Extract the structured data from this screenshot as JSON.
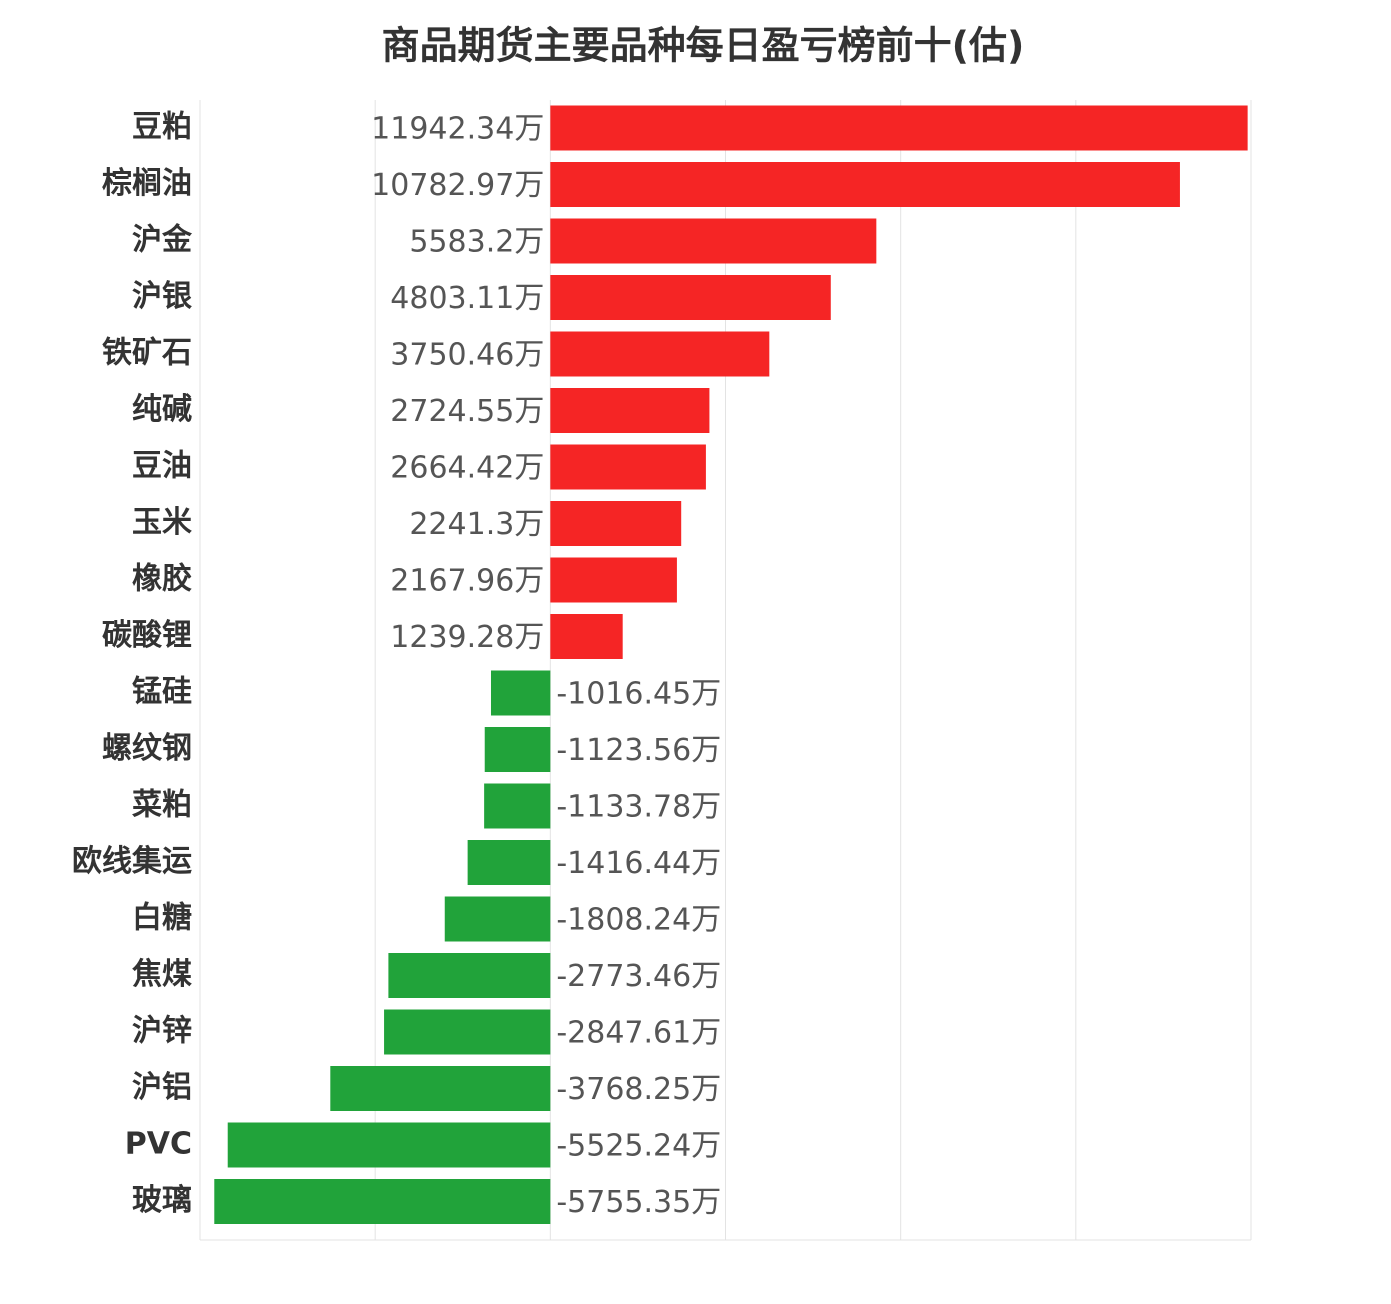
{
  "chart_data": {
    "type": "bar",
    "orientation": "horizontal",
    "title": "商品期货主要品种每日盈亏榜前十(估)",
    "categories": [
      "豆粕",
      "棕榈油",
      "沪金",
      "沪银",
      "铁矿石",
      "纯碱",
      "豆油",
      "玉米",
      "橡胶",
      "碳酸锂",
      "锰硅",
      "螺纹钢",
      "菜粕",
      "欧线集运",
      "白糖",
      "焦煤",
      "沪锌",
      "沪铝",
      "PVC",
      "玻璃"
    ],
    "values": [
      11942.34,
      10782.97,
      5583.2,
      4803.11,
      3750.46,
      2724.55,
      2664.42,
      2241.3,
      2167.96,
      1239.28,
      -1016.45,
      -1123.56,
      -1133.78,
      -1416.44,
      -1808.24,
      -2773.46,
      -2847.61,
      -3768.25,
      -5525.24,
      -5755.35
    ],
    "value_labels": [
      "11942.34万",
      "10782.97万",
      "5583.2万",
      "4803.11万",
      "3750.46万",
      "2724.55万",
      "2664.42万",
      "2241.3万",
      "2167.96万",
      "1239.28万",
      "-1016.45万",
      "-1123.56万",
      "-1133.78万",
      "-1416.44万",
      "-1808.24万",
      "-2773.46万",
      "-2847.61万",
      "-3768.25万",
      "-5525.24万",
      "-5755.35万"
    ],
    "positive_color": "#f52525",
    "negative_color": "#21a33a",
    "xlim": [
      -6000,
      12000
    ],
    "xticks": [
      -6000,
      -3000,
      0,
      3000,
      6000,
      9000,
      12000
    ],
    "grid": true
  }
}
